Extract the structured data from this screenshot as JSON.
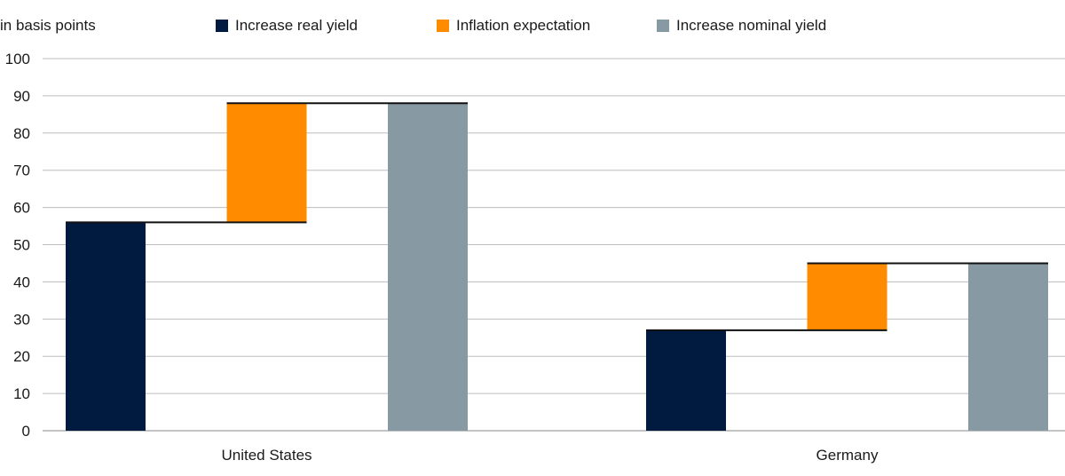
{
  "chart_data": {
    "type": "bar",
    "subtype": "waterfall",
    "ylabel": "in basis points",
    "ylim": [
      0,
      100
    ],
    "yticks": [
      0,
      10,
      20,
      30,
      40,
      50,
      60,
      70,
      80,
      90,
      100
    ],
    "grid": true,
    "legend_position": "top",
    "legend": [
      {
        "label": "Increase real yield",
        "color": "#001a40"
      },
      {
        "label": "Inflation expectation",
        "color": "#ff8c00"
      },
      {
        "label": "Increase nominal yield",
        "color": "#8799a3"
      }
    ],
    "groups": [
      {
        "name": "United States",
        "real_yield": 56,
        "inflation_expectation": 32,
        "nominal_yield": 88
      },
      {
        "name": "Germany",
        "real_yield": 27,
        "inflation_expectation": 18,
        "nominal_yield": 45
      }
    ]
  }
}
